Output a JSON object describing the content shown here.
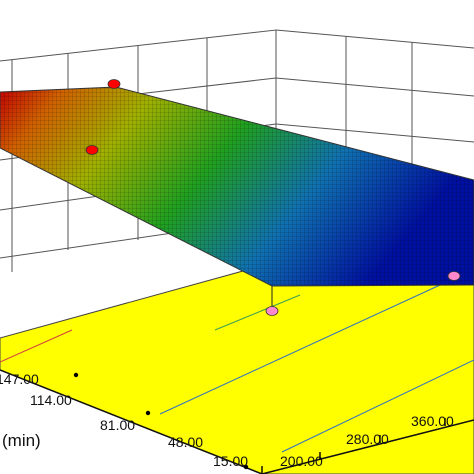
{
  "chart_data": {
    "type": "surface",
    "title": "",
    "xlabel": "(min)",
    "ylabel": "",
    "zlabel": "",
    "x_axis": {
      "ticks": [
        "15.00",
        "48.00",
        "81.00",
        "114.00",
        "147.00"
      ],
      "visible_ticks": [
        "48.00",
        "81.00",
        "114.00",
        "15.00"
      ],
      "range": [
        15,
        147
      ]
    },
    "y_axis": {
      "ticks": [
        "200.00",
        "280.00",
        "360.00"
      ],
      "range": [
        200,
        440
      ]
    },
    "surface_shape": "plane",
    "surface_colormap": [
      "#c00000",
      "#e08000",
      "#c0c000",
      "#20a020",
      "#1060c0",
      "#0010a0"
    ],
    "floor_color": "#ffff00",
    "design_points": [
      {
        "position": "above",
        "color": "#ff0000"
      },
      {
        "position": "above",
        "color": "#ff0000"
      },
      {
        "position": "below",
        "color": "#ff88cc"
      },
      {
        "position": "below",
        "color": "#ff88cc"
      }
    ],
    "grid": true
  }
}
